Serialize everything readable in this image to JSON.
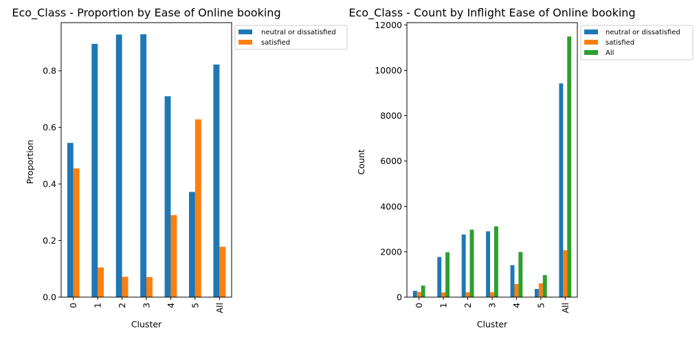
{
  "chart_data": [
    {
      "type": "bar",
      "title": "Eco_Class - Proportion by Ease of Online booking",
      "xlabel": "Cluster",
      "ylabel": "Proportion",
      "categories": [
        "0",
        "1",
        "2",
        "3",
        "4",
        "5",
        "All"
      ],
      "ylim": [
        0,
        0.97
      ],
      "yticks": [
        0.0,
        0.2,
        0.4,
        0.6,
        0.8
      ],
      "ytick_labels": [
        "0.0",
        "0.2",
        "0.4",
        "0.6",
        "0.8"
      ],
      "grid": false,
      "legend_position": "outside-top-right",
      "series": [
        {
          "name": "neutral or dissatisfied",
          "color": "#1f77b4",
          "values": [
            0.545,
            0.895,
            0.928,
            0.929,
            0.71,
            0.372,
            0.822
          ]
        },
        {
          "name": "satisfied",
          "color": "#ff7f0e",
          "values": [
            0.455,
            0.105,
            0.072,
            0.071,
            0.29,
            0.628,
            0.178
          ]
        }
      ]
    },
    {
      "type": "bar",
      "title": "Eco_Class - Count by Inflight Ease of Online booking",
      "xlabel": "Cluster",
      "ylabel": "Count",
      "categories": [
        "0",
        "1",
        "2",
        "3",
        "4",
        "5",
        "All"
      ],
      "ylim": [
        0,
        12100
      ],
      "yticks": [
        0,
        2000,
        4000,
        6000,
        8000,
        10000,
        12000
      ],
      "ytick_labels": [
        "0",
        "2000",
        "4000",
        "6000",
        "8000",
        "10000",
        "12000"
      ],
      "grid": false,
      "legend_position": "outside-top-right",
      "series": [
        {
          "name": "neutral or dissatisfied",
          "color": "#1f77b4",
          "values": [
            280,
            1770,
            2760,
            2900,
            1410,
            360,
            9420
          ]
        },
        {
          "name": "satisfied",
          "color": "#ff7f0e",
          "values": [
            230,
            210,
            215,
            220,
            580,
            610,
            2070
          ]
        },
        {
          "name": "All",
          "color": "#2ca02c",
          "values": [
            510,
            1980,
            2975,
            3120,
            1990,
            970,
            11490
          ]
        }
      ]
    }
  ]
}
